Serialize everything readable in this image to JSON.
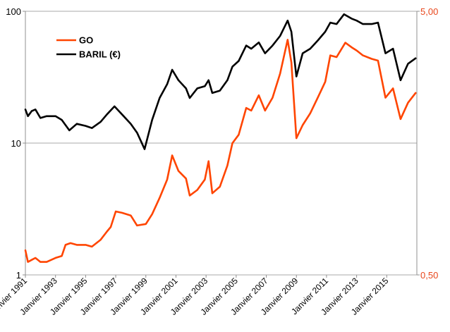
{
  "chart_data": {
    "type": "line",
    "title": "",
    "xlabel": "",
    "ylabel": "",
    "y_scale": "log",
    "ylim": [
      1,
      100
    ],
    "y2lim": [
      0.5,
      5
    ],
    "yticks": [
      "1",
      "10",
      "100"
    ],
    "y2ticks": [
      "0,50",
      "5,00"
    ],
    "x_range": [
      "1991-01",
      "2017-01"
    ],
    "xticks": [
      "Janvier 1991",
      "Janvier 1993",
      "Janvier 1995",
      "Janvier 1997",
      "Janvier 1999",
      "Janvier 2001",
      "Janvier 2003",
      "Janvier 2005",
      "Janvier 2007",
      "Janvier 2009",
      "Janvier 2011",
      "Janvier 2013",
      "Janvier 2015"
    ],
    "grid": "horizontal",
    "legend_position": "top-left",
    "series": [
      {
        "name": "GO",
        "axis": "right",
        "color": "#ff4500",
        "points": [
          [
            "1991-01",
            0.62
          ],
          [
            "1991-03",
            0.56
          ],
          [
            "1991-06",
            0.57
          ],
          [
            "1991-09",
            0.58
          ],
          [
            "1992-01",
            0.56
          ],
          [
            "1992-06",
            0.56
          ],
          [
            "1993-01",
            0.58
          ],
          [
            "1993-06",
            0.59
          ],
          [
            "1993-09",
            0.65
          ],
          [
            "1994-01",
            0.66
          ],
          [
            "1994-06",
            0.65
          ],
          [
            "1995-01",
            0.65
          ],
          [
            "1995-06",
            0.64
          ],
          [
            "1996-01",
            0.68
          ],
          [
            "1996-06",
            0.73
          ],
          [
            "1996-09",
            0.76
          ],
          [
            "1997-01",
            0.87
          ],
          [
            "1997-06",
            0.86
          ],
          [
            "1998-01",
            0.84
          ],
          [
            "1998-06",
            0.77
          ],
          [
            "1999-01",
            0.78
          ],
          [
            "1999-06",
            0.85
          ],
          [
            "1999-12",
            0.98
          ],
          [
            "2000-06",
            1.15
          ],
          [
            "2000-10",
            1.42
          ],
          [
            "2001-03",
            1.24
          ],
          [
            "2001-09",
            1.16
          ],
          [
            "2001-12",
            1.0
          ],
          [
            "2002-06",
            1.05
          ],
          [
            "2002-12",
            1.15
          ],
          [
            "2003-03",
            1.35
          ],
          [
            "2003-06",
            1.02
          ],
          [
            "2003-12",
            1.08
          ],
          [
            "2004-06",
            1.3
          ],
          [
            "2004-10",
            1.58
          ],
          [
            "2005-03",
            1.7
          ],
          [
            "2005-09",
            2.15
          ],
          [
            "2006-01",
            2.1
          ],
          [
            "2006-07",
            2.4
          ],
          [
            "2006-12",
            2.1
          ],
          [
            "2007-06",
            2.35
          ],
          [
            "2007-12",
            2.9
          ],
          [
            "2008-06",
            3.9
          ],
          [
            "2008-09",
            3.2
          ],
          [
            "2009-01",
            1.65
          ],
          [
            "2009-06",
            1.85
          ],
          [
            "2009-12",
            2.05
          ],
          [
            "2010-06",
            2.35
          ],
          [
            "2010-12",
            2.7
          ],
          [
            "2011-04",
            3.4
          ],
          [
            "2011-09",
            3.35
          ],
          [
            "2012-04",
            3.8
          ],
          [
            "2012-09",
            3.65
          ],
          [
            "2013-01",
            3.55
          ],
          [
            "2013-06",
            3.4
          ],
          [
            "2014-01",
            3.3
          ],
          [
            "2014-06",
            3.25
          ],
          [
            "2014-12",
            2.35
          ],
          [
            "2015-06",
            2.55
          ],
          [
            "2015-12",
            1.95
          ],
          [
            "2016-06",
            2.25
          ],
          [
            "2016-12",
            2.45
          ]
        ]
      },
      {
        "name": "BARIL (€)",
        "axis": "left",
        "color": "#000000",
        "points": [
          [
            "1991-01",
            18.0
          ],
          [
            "1991-03",
            16.0
          ],
          [
            "1991-06",
            17.5
          ],
          [
            "1991-09",
            18.0
          ],
          [
            "1992-01",
            15.5
          ],
          [
            "1992-06",
            16.0
          ],
          [
            "1993-01",
            16.0
          ],
          [
            "1993-06",
            15.0
          ],
          [
            "1993-12",
            12.5
          ],
          [
            "1994-06",
            14.0
          ],
          [
            "1995-01",
            13.5
          ],
          [
            "1995-06",
            13.0
          ],
          [
            "1996-01",
            14.5
          ],
          [
            "1996-06",
            16.5
          ],
          [
            "1996-12",
            19.0
          ],
          [
            "1997-06",
            16.5
          ],
          [
            "1998-01",
            14.0
          ],
          [
            "1998-06",
            12.0
          ],
          [
            "1998-12",
            9.0
          ],
          [
            "1999-06",
            15.0
          ],
          [
            "1999-12",
            22.0
          ],
          [
            "2000-06",
            28.0
          ],
          [
            "2000-10",
            36.0
          ],
          [
            "2001-03",
            30.0
          ],
          [
            "2001-09",
            26.0
          ],
          [
            "2001-12",
            22.0
          ],
          [
            "2002-06",
            26.0
          ],
          [
            "2002-12",
            27.0
          ],
          [
            "2003-03",
            30.0
          ],
          [
            "2003-06",
            24.0
          ],
          [
            "2003-12",
            25.0
          ],
          [
            "2004-06",
            30.0
          ],
          [
            "2004-10",
            38.0
          ],
          [
            "2005-03",
            42.0
          ],
          [
            "2005-09",
            55.0
          ],
          [
            "2006-01",
            52.0
          ],
          [
            "2006-07",
            58.0
          ],
          [
            "2006-12",
            48.0
          ],
          [
            "2007-06",
            55.0
          ],
          [
            "2007-12",
            65.0
          ],
          [
            "2008-06",
            85.0
          ],
          [
            "2008-09",
            70.0
          ],
          [
            "2009-01",
            32.0
          ],
          [
            "2009-06",
            48.0
          ],
          [
            "2009-12",
            52.0
          ],
          [
            "2010-06",
            60.0
          ],
          [
            "2010-12",
            70.0
          ],
          [
            "2011-04",
            82.0
          ],
          [
            "2011-09",
            80.0
          ],
          [
            "2012-03",
            95.0
          ],
          [
            "2012-09",
            88.0
          ],
          [
            "2013-01",
            85.0
          ],
          [
            "2013-06",
            80.0
          ],
          [
            "2014-01",
            80.0
          ],
          [
            "2014-06",
            82.0
          ],
          [
            "2014-12",
            48.0
          ],
          [
            "2015-06",
            52.0
          ],
          [
            "2015-12",
            30.0
          ],
          [
            "2016-06",
            40.0
          ],
          [
            "2016-12",
            44.0
          ]
        ]
      }
    ]
  }
}
